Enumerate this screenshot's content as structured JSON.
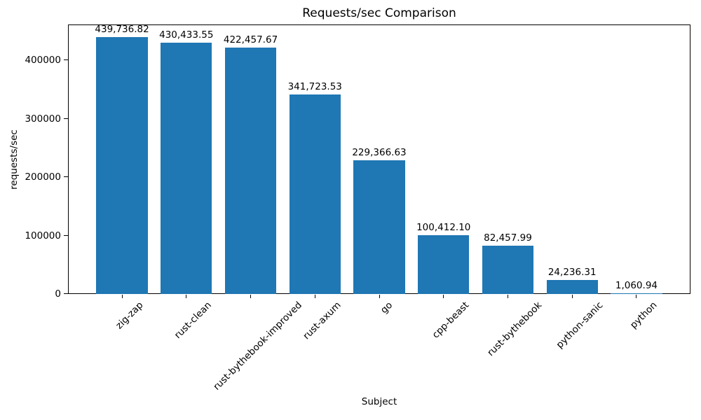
{
  "chart_data": {
    "type": "bar",
    "title": "Requests/sec Comparison",
    "xlabel": "Subject",
    "ylabel": "requests/sec",
    "categories": [
      "zig-zap",
      "rust-clean",
      "rust-bythebook-improved",
      "rust-axum",
      "go",
      "cpp-beast",
      "rust-bythebook",
      "python-sanic",
      "python"
    ],
    "values": [
      439736.82,
      430433.55,
      422457.67,
      341723.53,
      229366.63,
      100412.1,
      82457.99,
      24236.31,
      1060.94
    ],
    "value_labels": [
      "439,736.82",
      "430,433.55",
      "422,457.67",
      "341,723.53",
      "229,366.63",
      "100,412.10",
      "82,457.99",
      "24,236.31",
      "1,060.94"
    ],
    "yticks": [
      0,
      100000,
      200000,
      300000,
      400000
    ],
    "ytick_labels": [
      "0",
      "100000",
      "200000",
      "300000",
      "400000"
    ],
    "ylim": [
      0,
      461723.66
    ],
    "bar_color": "#1f77b4",
    "grid": false,
    "legend": null
  }
}
